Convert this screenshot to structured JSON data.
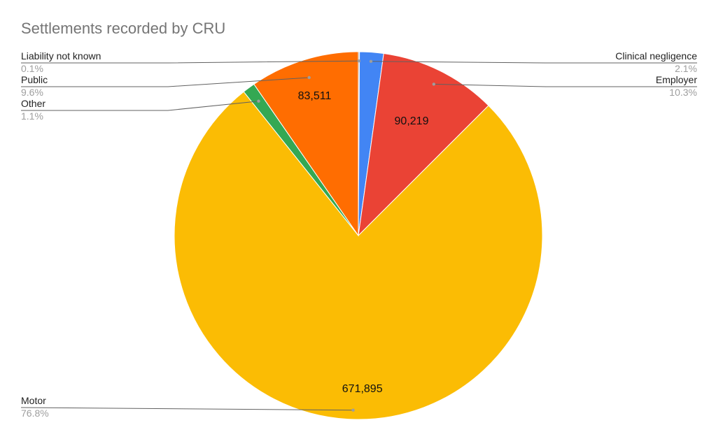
{
  "chart_data": {
    "type": "pie",
    "title": "Settlements recorded by CRU",
    "slices": [
      {
        "name": "Liability not known",
        "percent": "0.1%",
        "share": 0.001,
        "value_label": "",
        "color": "#9e9e9e"
      },
      {
        "name": "Clinical negligence",
        "percent": "2.1%",
        "share": 0.021,
        "value_label": "",
        "color": "#4285f4"
      },
      {
        "name": "Employer",
        "percent": "10.3%",
        "share": 0.103,
        "value_label": "90,219",
        "color": "#ea4335"
      },
      {
        "name": "Motor",
        "percent": "76.8%",
        "share": 0.768,
        "value_label": "671,895",
        "color": "#fbbc04"
      },
      {
        "name": "Other",
        "percent": "1.1%",
        "share": 0.011,
        "value_label": "",
        "color": "#34a853"
      },
      {
        "name": "Public",
        "percent": "9.6%",
        "share": 0.096,
        "value_label": "83,511",
        "color": "#ff6d01"
      }
    ],
    "legend": "none"
  }
}
